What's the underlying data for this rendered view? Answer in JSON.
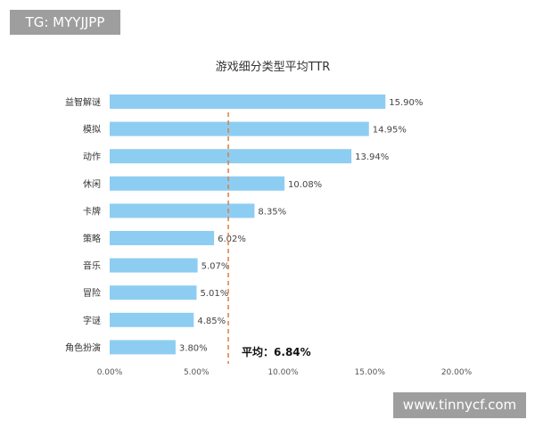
{
  "watermarks": {
    "top_left": "TG: MYYJJPP",
    "bottom_right": "www.tinnycf.com"
  },
  "chart_data": {
    "type": "bar",
    "orientation": "horizontal",
    "title": "游戏细分类型平均TTR",
    "categories": [
      "益智解谜",
      "模拟",
      "动作",
      "休闲",
      "卡牌",
      "策略",
      "音乐",
      "冒险",
      "字谜",
      "角色扮演"
    ],
    "values": [
      15.9,
      14.95,
      13.94,
      10.08,
      8.35,
      6.02,
      5.07,
      5.01,
      4.85,
      3.8
    ],
    "value_labels": [
      "15.90%",
      "14.95%",
      "13.94%",
      "10.08%",
      "8.35%",
      "6.02%",
      "5.07%",
      "5.01%",
      "4.85%",
      "3.80%"
    ],
    "xlim": [
      0,
      20
    ],
    "xticks": [
      0,
      5,
      10,
      15,
      20
    ],
    "xtick_labels": [
      "0.00%",
      "5.00%",
      "10.00%",
      "15.00%",
      "20.00%"
    ],
    "average": {
      "value": 6.84,
      "label": "平均：6.84%"
    },
    "colors": {
      "bar": "#8ecdf2",
      "average_line": "#e07b39"
    },
    "grid": false,
    "legend": "none"
  }
}
